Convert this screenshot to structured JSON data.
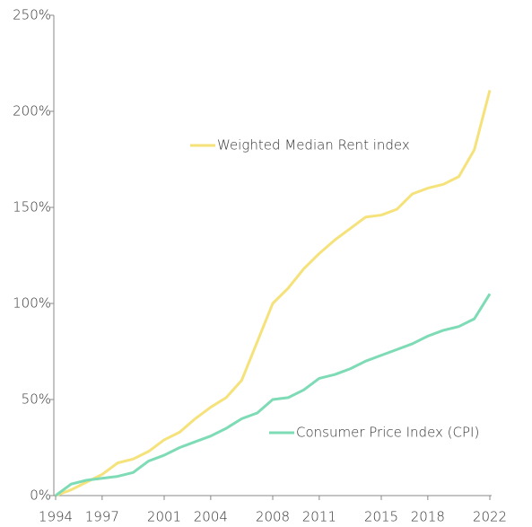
{
  "chart_data": {
    "type": "line",
    "x": [
      1994,
      1995,
      1996,
      1997,
      1998,
      1999,
      2000,
      2001,
      2002,
      2003,
      2004,
      2005,
      2006,
      2007,
      2008,
      2009,
      2010,
      2011,
      2012,
      2013,
      2014,
      2015,
      2016,
      2017,
      2018,
      2019,
      2020,
      2021,
      2022
    ],
    "series": [
      {
        "name": "Weighted Median Rent index",
        "color": "#f5e27a",
        "values": [
          0,
          3,
          7,
          11,
          17,
          19,
          23,
          29,
          33,
          40,
          46,
          51,
          60,
          80,
          100,
          108,
          118,
          126,
          133,
          139,
          145,
          146,
          149,
          157,
          160,
          162,
          166,
          180,
          211
        ]
      },
      {
        "name": "Consumer Price Index (CPI)",
        "color": "#7ddbb5",
        "values": [
          0,
          6,
          8,
          9,
          10,
          12,
          18,
          21,
          25,
          28,
          31,
          35,
          40,
          43,
          50,
          51,
          55,
          61,
          63,
          66,
          70,
          73,
          76,
          79,
          83,
          86,
          88,
          92,
          105
        ]
      }
    ],
    "xlim": [
      1994,
      2022
    ],
    "xticks": [
      1994,
      1997,
      2001,
      2004,
      2008,
      2011,
      2015,
      2018,
      2022
    ],
    "ylim": [
      0,
      250
    ],
    "yticks": [
      {
        "value": 0,
        "label": "0%"
      },
      {
        "value": 50,
        "label": "50%"
      },
      {
        "value": 100,
        "label": "100%"
      },
      {
        "value": 150,
        "label": "150%"
      },
      {
        "value": 200,
        "label": "200%"
      },
      {
        "value": 250,
        "label": "250%"
      }
    ]
  }
}
